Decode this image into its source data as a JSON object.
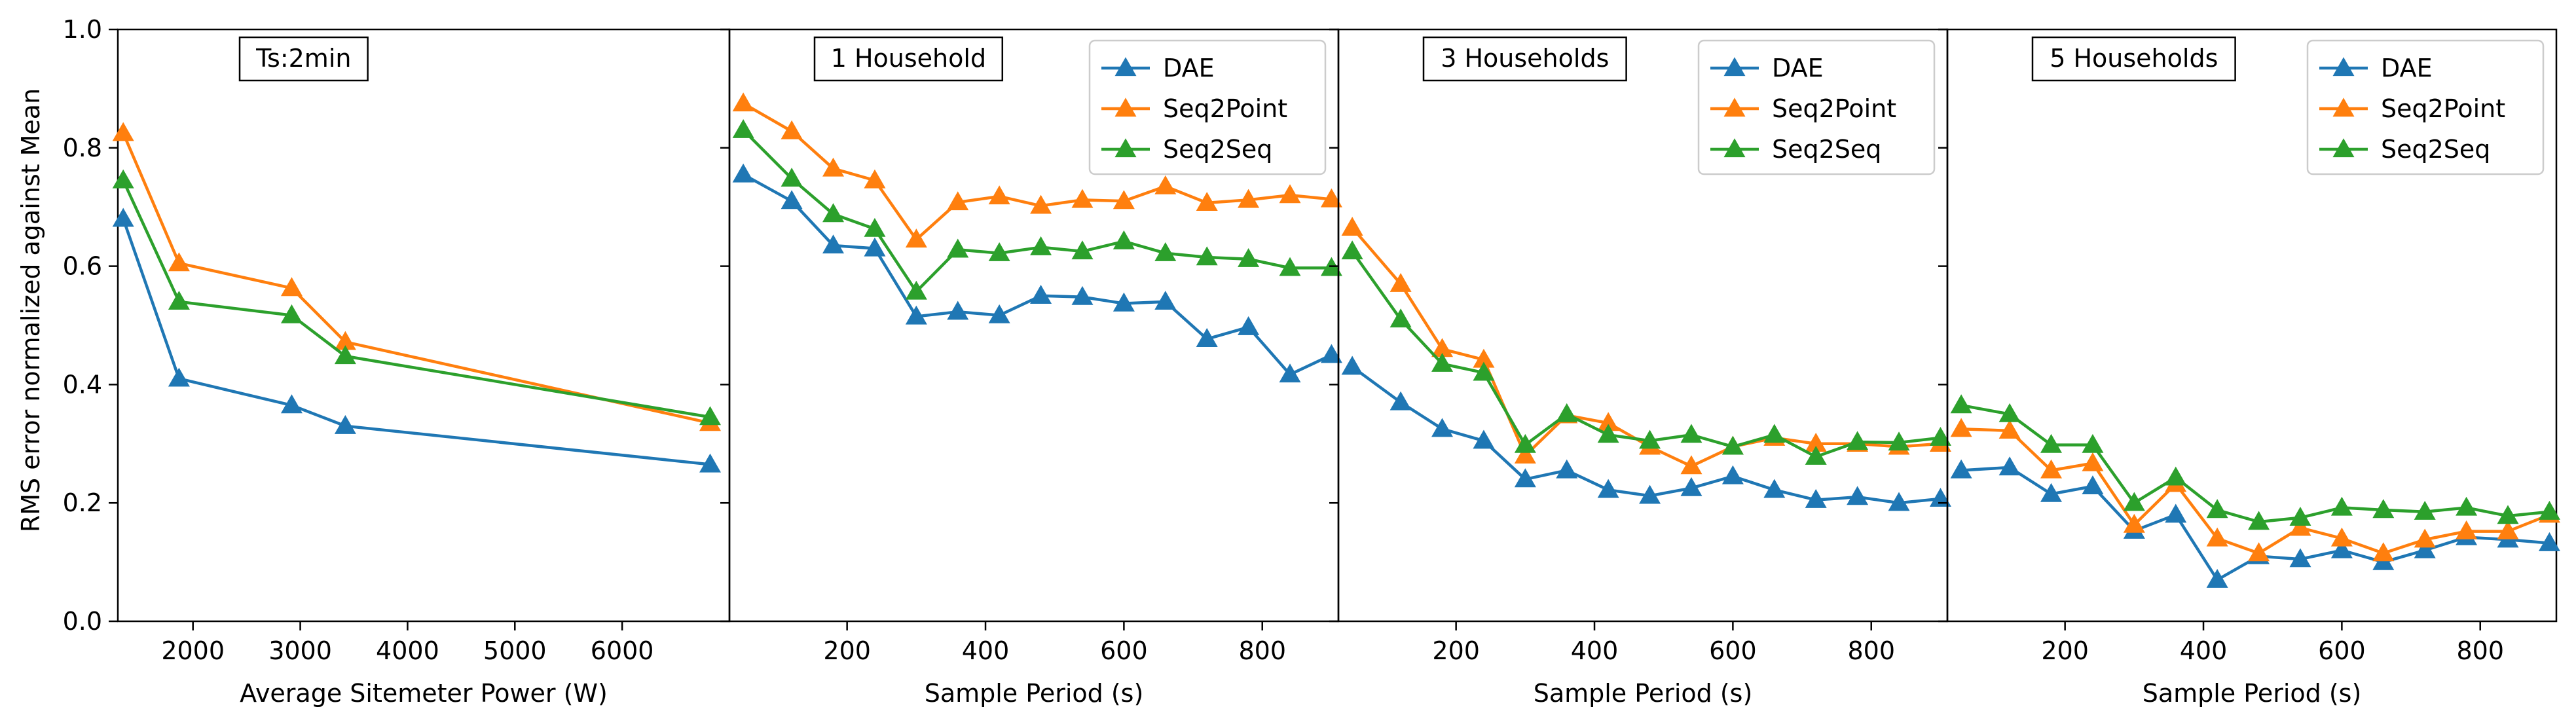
{
  "figure": {
    "ylabel": "RMS error normalized against Mean",
    "y_ticks": [
      "0.0",
      "0.2",
      "0.4",
      "0.6",
      "0.8",
      "1.0"
    ]
  },
  "colors": {
    "DAE": "#1f77b4",
    "Seq2Point": "#ff7f0e",
    "Seq2Seq": "#2ca02c"
  },
  "chart_data": [
    {
      "type": "line",
      "annotation": "Ts:2min",
      "xlabel": "Average Sitemeter Power (W)",
      "xlim": [
        1300,
        7000
      ],
      "ylim": [
        0,
        1.0
      ],
      "x_ticks": [
        2000,
        3000,
        4000,
        5000,
        6000
      ],
      "legend": false,
      "x": [
        1350,
        1870,
        2920,
        3420,
        6820
      ],
      "series": [
        {
          "name": "DAE",
          "values": [
            0.68,
            0.41,
            0.365,
            0.33,
            0.265
          ]
        },
        {
          "name": "Seq2Point",
          "values": [
            0.825,
            0.605,
            0.563,
            0.472,
            0.335
          ]
        },
        {
          "name": "Seq2Seq",
          "values": [
            0.745,
            0.54,
            0.517,
            0.448,
            0.345
          ]
        }
      ]
    },
    {
      "type": "line",
      "annotation": "1 Household",
      "xlabel": "Sample Period (s)",
      "xlim": [
        30,
        910
      ],
      "ylim": [
        0,
        1.0
      ],
      "x_ticks": [
        200,
        400,
        600,
        800
      ],
      "legend": true,
      "legend_position": "top-right",
      "x": [
        50,
        120,
        180,
        240,
        300,
        360,
        420,
        480,
        540,
        600,
        660,
        720,
        780,
        840,
        900
      ],
      "series": [
        {
          "name": "DAE",
          "values": [
            0.755,
            0.71,
            0.635,
            0.63,
            0.515,
            0.523,
            0.517,
            0.55,
            0.548,
            0.537,
            0.54,
            0.477,
            0.497,
            0.417,
            0.45
          ]
        },
        {
          "name": "Seq2Point",
          "values": [
            0.875,
            0.828,
            0.765,
            0.745,
            0.645,
            0.708,
            0.718,
            0.702,
            0.712,
            0.71,
            0.735,
            0.707,
            0.712,
            0.72,
            0.713
          ]
        },
        {
          "name": "Seq2Seq",
          "values": [
            0.83,
            0.748,
            0.688,
            0.663,
            0.557,
            0.628,
            0.622,
            0.632,
            0.625,
            0.642,
            0.622,
            0.615,
            0.612,
            0.597,
            0.597
          ]
        }
      ]
    },
    {
      "type": "line",
      "annotation": "3 Households",
      "xlabel": "Sample Period (s)",
      "xlim": [
        30,
        910
      ],
      "ylim": [
        0,
        1.0
      ],
      "x_ticks": [
        200,
        400,
        600,
        800
      ],
      "legend": true,
      "legend_position": "top-right",
      "x": [
        50,
        120,
        180,
        240,
        300,
        360,
        420,
        480,
        540,
        600,
        660,
        720,
        780,
        840,
        900
      ],
      "series": [
        {
          "name": "DAE",
          "values": [
            0.43,
            0.37,
            0.325,
            0.305,
            0.24,
            0.255,
            0.222,
            0.212,
            0.225,
            0.245,
            0.222,
            0.205,
            0.21,
            0.2,
            0.207
          ]
        },
        {
          "name": "Seq2Point",
          "values": [
            0.665,
            0.57,
            0.46,
            0.442,
            0.28,
            0.348,
            0.335,
            0.295,
            0.262,
            0.295,
            0.31,
            0.3,
            0.3,
            0.295,
            0.3
          ]
        },
        {
          "name": "Seq2Seq",
          "values": [
            0.625,
            0.51,
            0.435,
            0.42,
            0.298,
            0.35,
            0.315,
            0.305,
            0.315,
            0.295,
            0.315,
            0.278,
            0.303,
            0.302,
            0.31
          ]
        }
      ]
    },
    {
      "type": "line",
      "annotation": "5 Households",
      "xlabel": "Sample Period (s)",
      "xlim": [
        30,
        910
      ],
      "ylim": [
        0,
        1.0
      ],
      "x_ticks": [
        200,
        400,
        600,
        800
      ],
      "legend": true,
      "legend_position": "top-right",
      "x": [
        50,
        120,
        180,
        240,
        300,
        360,
        420,
        480,
        540,
        600,
        660,
        720,
        780,
        840,
        900
      ],
      "series": [
        {
          "name": "DAE",
          "values": [
            0.255,
            0.26,
            0.215,
            0.228,
            0.153,
            0.18,
            0.07,
            0.11,
            0.105,
            0.12,
            0.1,
            0.12,
            0.142,
            0.138,
            0.132
          ]
        },
        {
          "name": "Seq2Point",
          "values": [
            0.325,
            0.322,
            0.255,
            0.267,
            0.163,
            0.232,
            0.14,
            0.115,
            0.158,
            0.14,
            0.115,
            0.138,
            0.152,
            0.152,
            0.18
          ]
        },
        {
          "name": "Seq2Seq",
          "values": [
            0.365,
            0.35,
            0.298,
            0.298,
            0.2,
            0.243,
            0.188,
            0.168,
            0.175,
            0.192,
            0.188,
            0.185,
            0.192,
            0.178,
            0.185
          ]
        }
      ]
    }
  ]
}
